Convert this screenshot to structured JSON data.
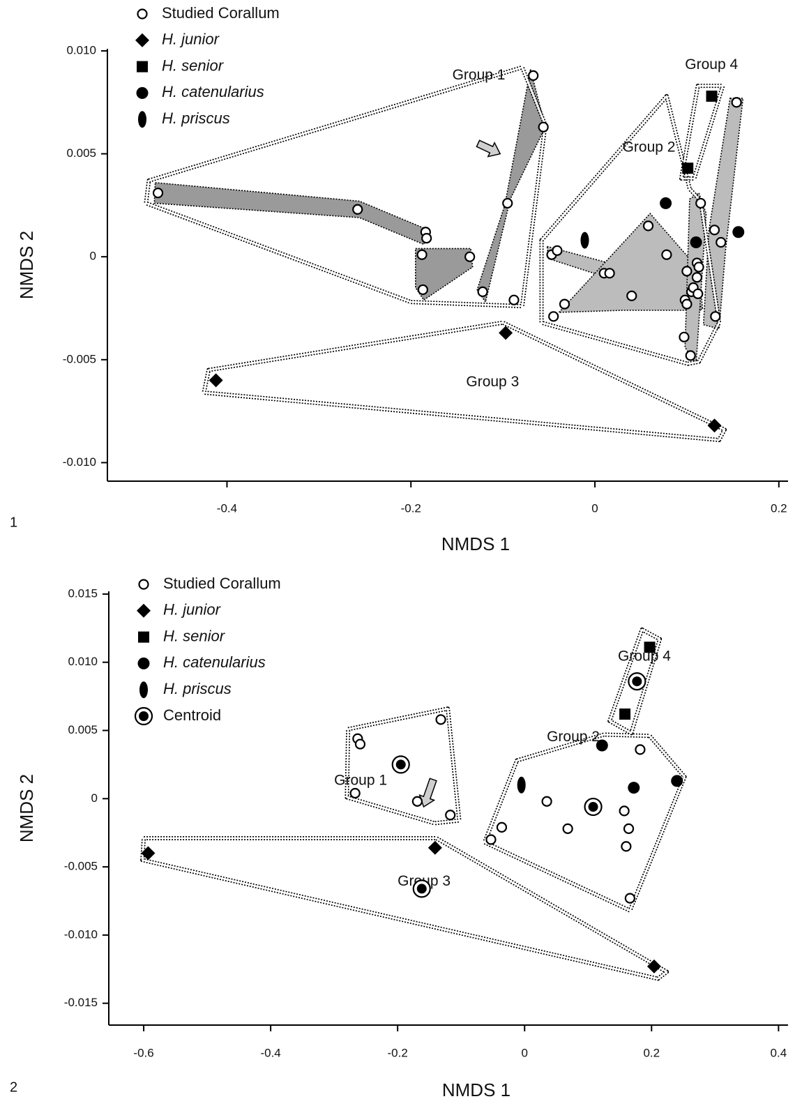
{
  "chart_data": [
    {
      "type": "scatter",
      "panel_label": "1",
      "xlabel": "NMDS 1",
      "ylabel": "NMDS 2",
      "xlim": [
        -0.53,
        0.21
      ],
      "ylim": [
        -0.0109,
        0.0101
      ],
      "xticks": [
        -0.4,
        -0.2,
        0,
        0.2
      ],
      "xtick_labels": [
        "-0.4",
        "-0.2",
        "0",
        "0.2"
      ],
      "yticks": [
        0.01,
        0.005,
        0,
        -0.005,
        -0.01
      ],
      "ytick_labels": [
        "0.010",
        "0.005",
        "0",
        "-0.005",
        "-0.010"
      ],
      "grid": false,
      "legend_position": "top-left",
      "legend": [
        {
          "label": "Studied Corallum",
          "marker": "open-circle",
          "italic": false
        },
        {
          "label": "H. junior",
          "marker": "diamond",
          "italic": true
        },
        {
          "label": "H. senior",
          "marker": "square",
          "italic": true
        },
        {
          "label": "H. catenularius",
          "marker": "filled-circle",
          "italic": true
        },
        {
          "label": "H. priscus",
          "marker": "ellipse",
          "italic": true
        }
      ],
      "series": [
        {
          "marker": "open-circle",
          "points": [
            [
              -0.475,
              0.0031
            ],
            [
              -0.258,
              0.0023
            ],
            [
              -0.184,
              0.0012
            ],
            [
              -0.183,
              0.0009
            ],
            [
              -0.188,
              0.0001
            ],
            [
              -0.187,
              -0.0016
            ],
            [
              -0.136,
              0.0
            ],
            [
              -0.122,
              -0.0017
            ],
            [
              -0.095,
              0.0026
            ],
            [
              -0.088,
              -0.0021
            ],
            [
              -0.067,
              0.0088
            ],
            [
              -0.056,
              0.0063
            ],
            [
              -0.047,
              0.0001
            ],
            [
              -0.041,
              0.0003
            ],
            [
              -0.045,
              -0.0029
            ],
            [
              -0.033,
              -0.0023
            ],
            [
              0.01,
              -0.0008
            ],
            [
              0.016,
              -0.0008
            ],
            [
              0.04,
              -0.0019
            ],
            [
              0.058,
              0.0015
            ],
            [
              0.078,
              0.0001
            ],
            [
              0.1,
              -0.0007
            ],
            [
              0.098,
              -0.0021
            ],
            [
              0.1,
              -0.0023
            ],
            [
              0.105,
              -0.0017
            ],
            [
              0.107,
              -0.0015
            ],
            [
              0.111,
              -0.0003
            ],
            [
              0.111,
              -0.001
            ],
            [
              0.113,
              -0.0005
            ],
            [
              0.112,
              -0.0018
            ],
            [
              0.115,
              0.0026
            ],
            [
              0.097,
              -0.0039
            ],
            [
              0.104,
              -0.0048
            ],
            [
              0.13,
              0.0013
            ],
            [
              0.137,
              0.0007
            ],
            [
              0.131,
              -0.0029
            ],
            [
              0.154,
              0.0075
            ]
          ]
        },
        {
          "marker": "diamond",
          "points": [
            [
              -0.412,
              -0.006
            ],
            [
              -0.097,
              -0.0037
            ],
            [
              0.13,
              -0.0082
            ]
          ]
        },
        {
          "marker": "square",
          "points": [
            [
              0.127,
              0.0078
            ],
            [
              0.101,
              0.0043
            ]
          ]
        },
        {
          "marker": "filled-circle",
          "points": [
            [
              0.077,
              0.0026
            ],
            [
              0.11,
              0.0007
            ],
            [
              0.156,
              0.0012
            ]
          ]
        },
        {
          "marker": "ellipse",
          "points": [
            [
              -0.011,
              0.0008
            ]
          ]
        }
      ],
      "groups": [
        {
          "label": "Group 1",
          "label_at": [
            -0.155,
            0.0088
          ],
          "hull": [
            [
              -0.485,
              0.0037
            ],
            [
              -0.079,
              0.0092
            ],
            [
              -0.054,
              0.0064
            ],
            [
              -0.079,
              -0.0024
            ],
            [
              -0.2,
              -0.0022
            ],
            [
              -0.488,
              0.0026
            ]
          ]
        },
        {
          "label": "Group 2",
          "label_at": [
            0.03,
            0.0053
          ],
          "hull": [
            [
              -0.058,
              0.0008
            ],
            [
              0.078,
              0.0078
            ],
            [
              0.103,
              0.0033
            ],
            [
              0.115,
              0.0027
            ],
            [
              0.135,
              -0.0032
            ],
            [
              0.113,
              -0.0051
            ],
            [
              0.101,
              -0.0052
            ],
            [
              -0.058,
              -0.0032
            ]
          ]
        },
        {
          "label": "Group 3",
          "label_at": [
            -0.14,
            -0.0061
          ],
          "hull": [
            [
              -0.42,
              -0.0055
            ],
            [
              -0.1,
              -0.0032
            ],
            [
              0.141,
              -0.0084
            ],
            [
              0.135,
              -0.0089
            ],
            [
              -0.425,
              -0.0066
            ]
          ]
        },
        {
          "label": "Group 4",
          "label_at": [
            0.098,
            0.0093
          ],
          "hull": [
            [
              0.112,
              0.0083
            ],
            [
              0.139,
              0.0083
            ],
            [
              0.108,
              0.0038
            ],
            [
              0.094,
              0.0038
            ]
          ]
        }
      ],
      "shaded_polygons": [
        [
          [
            -0.478,
            0.0036
          ],
          [
            -0.256,
            0.0027
          ],
          [
            -0.181,
            0.0013
          ],
          [
            -0.186,
            0.0006
          ],
          [
            -0.256,
            0.0019
          ],
          [
            -0.479,
            0.0026
          ]
        ],
        [
          [
            -0.195,
            0.0004
          ],
          [
            -0.135,
            0.0004
          ],
          [
            -0.133,
            -0.0005
          ],
          [
            -0.186,
            -0.0021
          ],
          [
            -0.195,
            -0.0015
          ]
        ],
        [
          [
            -0.07,
            0.0091
          ],
          [
            -0.054,
            0.0063
          ],
          [
            -0.092,
            0.0028
          ],
          [
            -0.119,
            -0.0022
          ],
          [
            -0.128,
            -0.0016
          ],
          [
            -0.098,
            0.0025
          ]
        ],
        [
          [
            -0.052,
            0.0005
          ],
          [
            0.115,
            -0.0015
          ],
          [
            0.117,
            -0.0025
          ],
          [
            -0.05,
            -0.0001
          ]
        ],
        [
          [
            -0.039,
            -0.0027
          ],
          [
            0.06,
            0.0021
          ],
          [
            0.103,
            -0.0001
          ],
          [
            0.116,
            -0.0026
          ],
          [
            0.03,
            -0.0026
          ]
        ],
        [
          [
            0.103,
            0.0028
          ],
          [
            0.113,
            0.0031
          ],
          [
            0.121,
            0.0021
          ],
          [
            0.11,
            -0.0052
          ],
          [
            0.098,
            -0.0044
          ]
        ],
        [
          [
            0.147,
            0.0077
          ],
          [
            0.161,
            0.0077
          ],
          [
            0.142,
            0.0003
          ],
          [
            0.135,
            -0.0035
          ],
          [
            0.118,
            -0.0033
          ],
          [
            0.124,
            0.0013
          ]
        ]
      ],
      "arrow": {
        "tail": [
          -0.127,
          0.0055
        ],
        "tip": [
          -0.103,
          0.005
        ]
      }
    },
    {
      "type": "scatter",
      "panel_label": "2",
      "xlabel": "NMDS 1",
      "ylabel": "NMDS 2",
      "xlim": [
        -0.655,
        0.415
      ],
      "ylim": [
        -0.0166,
        0.0152
      ],
      "xticks": [
        -0.6,
        -0.4,
        -0.2,
        0,
        0.2,
        0.4
      ],
      "xtick_labels": [
        "-0.6",
        "-0.4",
        "-0.2",
        "0",
        "0.2",
        "0.4"
      ],
      "yticks": [
        0.015,
        0.01,
        0.005,
        0,
        -0.005,
        -0.01,
        -0.015
      ],
      "ytick_labels": [
        "0.015",
        "0.010",
        "0.005",
        "0",
        "-0.005",
        "-0.010",
        "-0.015"
      ],
      "grid": false,
      "legend_position": "top-left",
      "legend": [
        {
          "label": "Studied Corallum",
          "marker": "open-circle",
          "italic": false
        },
        {
          "label": "H. junior",
          "marker": "diamond",
          "italic": true
        },
        {
          "label": "H. senior",
          "marker": "square",
          "italic": true
        },
        {
          "label": "H. catenularius",
          "marker": "filled-circle",
          "italic": true
        },
        {
          "label": "H. priscus",
          "marker": "ellipse",
          "italic": true
        },
        {
          "label": "Centroid",
          "marker": "centroid",
          "italic": false
        }
      ],
      "series": [
        {
          "marker": "open-circle",
          "points": [
            [
              -0.263,
              0.0044
            ],
            [
              -0.259,
              0.004
            ],
            [
              -0.267,
              0.0004
            ],
            [
              -0.132,
              0.0058
            ],
            [
              -0.169,
              -0.0002
            ],
            [
              -0.117,
              -0.0012
            ],
            [
              -0.053,
              -0.003
            ],
            [
              -0.036,
              -0.0021
            ],
            [
              0.035,
              -0.0002
            ],
            [
              0.068,
              -0.0022
            ],
            [
              0.157,
              -0.0009
            ],
            [
              0.164,
              -0.0022
            ],
            [
              0.16,
              -0.0035
            ],
            [
              0.166,
              -0.0073
            ],
            [
              0.182,
              0.0036
            ]
          ]
        },
        {
          "marker": "diamond",
          "points": [
            [
              -0.593,
              -0.004
            ],
            [
              -0.141,
              -0.0036
            ],
            [
              0.204,
              -0.0123
            ]
          ]
        },
        {
          "marker": "square",
          "points": [
            [
              0.197,
              0.0111
            ],
            [
              0.158,
              0.0062
            ]
          ]
        },
        {
          "marker": "filled-circle",
          "points": [
            [
              0.122,
              0.0039
            ],
            [
              0.172,
              0.0008
            ],
            [
              0.24,
              0.0013
            ]
          ]
        },
        {
          "marker": "ellipse",
          "points": [
            [
              -0.005,
              0.001
            ]
          ]
        },
        {
          "marker": "centroid",
          "points": [
            [
              -0.195,
              0.0025
            ],
            [
              0.108,
              -0.0006
            ],
            [
              0.177,
              0.0086
            ],
            [
              -0.162,
              -0.0066
            ]
          ]
        }
      ],
      "groups": [
        {
          "label": "Group 1",
          "label_at": [
            -0.3,
            0.0013
          ],
          "hull": [
            [
              -0.278,
              0.0051
            ],
            [
              -0.121,
              0.0066
            ],
            [
              -0.103,
              -0.0016
            ],
            [
              -0.142,
              -0.0018
            ],
            [
              -0.28,
              0.0001
            ]
          ]
        },
        {
          "label": "Group 2",
          "label_at": [
            0.035,
            0.0045
          ],
          "hull": [
            [
              -0.012,
              0.0028
            ],
            [
              0.125,
              0.0047
            ],
            [
              0.197,
              0.0046
            ],
            [
              0.252,
              0.0016
            ],
            [
              0.166,
              -0.0082
            ],
            [
              -0.063,
              -0.0032
            ]
          ]
        },
        {
          "label": "Group 3",
          "label_at": [
            -0.2,
            -0.0061
          ],
          "hull": [
            [
              -0.6,
              -0.0029
            ],
            [
              -0.139,
              -0.0029
            ],
            [
              0.224,
              -0.0127
            ],
            [
              0.21,
              -0.0132
            ],
            [
              -0.602,
              -0.0045
            ]
          ]
        },
        {
          "label": "Group 4",
          "label_at": [
            0.147,
            0.0104
          ],
          "hull": [
            [
              0.185,
              0.0124
            ],
            [
              0.213,
              0.0117
            ],
            [
              0.168,
              0.0048
            ],
            [
              0.134,
              0.0057
            ]
          ]
        }
      ],
      "arrow": {
        "tail": [
          -0.144,
          0.0014
        ],
        "tip": [
          -0.159,
          -0.0006
        ]
      }
    }
  ]
}
